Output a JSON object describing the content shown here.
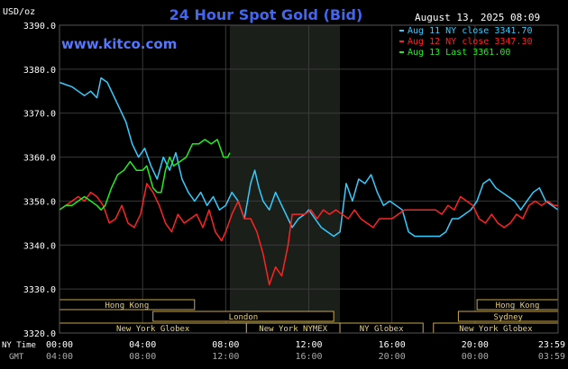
{
  "header": {
    "title": "24 Hour Spot Gold (Bid)",
    "unit": "USD/oz",
    "timestamp": "August 13, 2025 08:09",
    "site": "www.kitco.com"
  },
  "legend": [
    {
      "label": "Aug 11 NY close 3341.70",
      "color": "#33ccff"
    },
    {
      "label": "Aug 12 NY close 3347.30",
      "color": "#ff2222"
    },
    {
      "label": "Aug 13 Last 3361.00",
      "color": "#22ee22"
    }
  ],
  "sessions": [
    {
      "label": "Hong Kong",
      "row": 0,
      "start": 0,
      "end": 6.5
    },
    {
      "label": "London",
      "row": 1,
      "start": 4.5,
      "end": 13.2
    },
    {
      "label": "New York Globex",
      "row": 2,
      "start": 0,
      "end": 9
    },
    {
      "label": "New York NYMEX",
      "row": 2,
      "start": 9,
      "end": 13.5
    },
    {
      "label": "NY Globex",
      "row": 2,
      "start": 13.5,
      "end": 17.5
    },
    {
      "label": "Hong Kong",
      "row": 0,
      "start": 20.1,
      "end": 24
    },
    {
      "label": "Sydney",
      "row": 1,
      "start": 19.2,
      "end": 24
    },
    {
      "label": "New York Globex",
      "row": 2,
      "start": 18,
      "end": 24
    }
  ],
  "time_labels": {
    "ny_label": "NY Time",
    "gmt_label": "GMT",
    "ny": [
      "00:00",
      "04:00",
      "08:00",
      "12:00",
      "16:00",
      "20:00",
      "23:59"
    ],
    "gmt": [
      "04:00",
      "08:00",
      "12:00",
      "16:00",
      "20:00",
      "00:00",
      "03:59"
    ]
  },
  "chart_data": {
    "type": "line",
    "title": "24 Hour Spot Gold (Bid)",
    "ylabel": "USD/oz",
    "ylim": [
      3320,
      3390
    ],
    "yticks": [
      3320,
      3330,
      3340,
      3350,
      3360,
      3370,
      3380,
      3390
    ],
    "ytick_labels": [
      "3320.0",
      "3330.0",
      "3340.0",
      "3350.0",
      "3360.0",
      "3370.0",
      "3380.0",
      "3390.0"
    ],
    "xlim": [
      0,
      24
    ],
    "x_unit": "NY time (hours)",
    "highlight_range": [
      8.2,
      13.5
    ],
    "grid": true,
    "series": [
      {
        "name": "Aug 11 NY close 3341.70",
        "color": "#33ccff",
        "points": [
          [
            0,
            3377
          ],
          [
            0.3,
            3376.5
          ],
          [
            0.6,
            3376
          ],
          [
            0.9,
            3375
          ],
          [
            1.2,
            3374
          ],
          [
            1.5,
            3375
          ],
          [
            1.8,
            3373.5
          ],
          [
            2,
            3378
          ],
          [
            2.3,
            3377
          ],
          [
            2.6,
            3374
          ],
          [
            2.9,
            3371
          ],
          [
            3.2,
            3368
          ],
          [
            3.5,
            3363
          ],
          [
            3.8,
            3360
          ],
          [
            4.1,
            3362
          ],
          [
            4.4,
            3358
          ],
          [
            4.7,
            3355
          ],
          [
            5,
            3360
          ],
          [
            5.3,
            3357
          ],
          [
            5.6,
            3361
          ],
          [
            5.9,
            3355
          ],
          [
            6.2,
            3352
          ],
          [
            6.5,
            3350
          ],
          [
            6.8,
            3352
          ],
          [
            7.1,
            3349
          ],
          [
            7.4,
            3351
          ],
          [
            7.7,
            3348
          ],
          [
            8,
            3349
          ],
          [
            8.3,
            3352
          ],
          [
            8.6,
            3350
          ],
          [
            8.9,
            3346
          ],
          [
            9.2,
            3354
          ],
          [
            9.4,
            3357
          ],
          [
            9.6,
            3353
          ],
          [
            9.8,
            3350
          ],
          [
            10.1,
            3348
          ],
          [
            10.4,
            3352
          ],
          [
            10.7,
            3349
          ],
          [
            11,
            3346
          ],
          [
            11.2,
            3344
          ],
          [
            11.5,
            3346
          ],
          [
            11.8,
            3347
          ],
          [
            12,
            3348
          ],
          [
            12.3,
            3346
          ],
          [
            12.6,
            3344
          ],
          [
            12.9,
            3343
          ],
          [
            13.2,
            3342
          ],
          [
            13.5,
            3343
          ],
          [
            13.8,
            3354
          ],
          [
            14.1,
            3350
          ],
          [
            14.4,
            3355
          ],
          [
            14.7,
            3354
          ],
          [
            15,
            3356
          ],
          [
            15.3,
            3352
          ],
          [
            15.6,
            3349
          ],
          [
            15.9,
            3350
          ],
          [
            16.2,
            3349
          ],
          [
            16.5,
            3348
          ],
          [
            16.8,
            3343
          ],
          [
            17.1,
            3342
          ],
          [
            17.4,
            3342
          ],
          [
            17.7,
            3342
          ],
          [
            18,
            3342
          ],
          [
            18.3,
            3342
          ],
          [
            18.6,
            3343
          ],
          [
            18.9,
            3346
          ],
          [
            19.2,
            3346
          ],
          [
            19.5,
            3347
          ],
          [
            19.8,
            3348
          ],
          [
            20.1,
            3350
          ],
          [
            20.4,
            3354
          ],
          [
            20.7,
            3355
          ],
          [
            21,
            3353
          ],
          [
            21.3,
            3352
          ],
          [
            21.6,
            3351
          ],
          [
            21.9,
            3350
          ],
          [
            22.2,
            3348
          ],
          [
            22.5,
            3350
          ],
          [
            22.8,
            3352
          ],
          [
            23.1,
            3353
          ],
          [
            23.4,
            3350
          ],
          [
            23.7,
            3349
          ],
          [
            24,
            3348
          ]
        ]
      },
      {
        "name": "Aug 12 NY close 3347.30",
        "color": "#ff2222",
        "points": [
          [
            0,
            3348
          ],
          [
            0.3,
            3349
          ],
          [
            0.6,
            3350
          ],
          [
            0.9,
            3351
          ],
          [
            1.2,
            3350
          ],
          [
            1.5,
            3352
          ],
          [
            1.8,
            3351
          ],
          [
            2.1,
            3349
          ],
          [
            2.4,
            3345
          ],
          [
            2.7,
            3346
          ],
          [
            3,
            3349
          ],
          [
            3.3,
            3345
          ],
          [
            3.6,
            3344
          ],
          [
            3.9,
            3347
          ],
          [
            4.2,
            3354
          ],
          [
            4.5,
            3352
          ],
          [
            4.8,
            3349
          ],
          [
            5.1,
            3345
          ],
          [
            5.4,
            3343
          ],
          [
            5.7,
            3347
          ],
          [
            6,
            3345
          ],
          [
            6.3,
            3346
          ],
          [
            6.6,
            3347
          ],
          [
            6.9,
            3344
          ],
          [
            7.2,
            3348
          ],
          [
            7.5,
            3343
          ],
          [
            7.8,
            3341
          ],
          [
            8,
            3343
          ],
          [
            8.3,
            3347
          ],
          [
            8.6,
            3350
          ],
          [
            8.9,
            3346
          ],
          [
            9.2,
            3346
          ],
          [
            9.5,
            3343
          ],
          [
            9.8,
            3338
          ],
          [
            10.1,
            3331
          ],
          [
            10.4,
            3335
          ],
          [
            10.7,
            3333
          ],
          [
            11,
            3340
          ],
          [
            11.2,
            3347
          ],
          [
            11.5,
            3347
          ],
          [
            11.8,
            3347
          ],
          [
            12.1,
            3348
          ],
          [
            12.4,
            3346
          ],
          [
            12.7,
            3348
          ],
          [
            13,
            3347
          ],
          [
            13.3,
            3348
          ],
          [
            13.6,
            3347
          ],
          [
            13.9,
            3346
          ],
          [
            14.2,
            3348
          ],
          [
            14.5,
            3346
          ],
          [
            14.8,
            3345
          ],
          [
            15.1,
            3344
          ],
          [
            15.4,
            3346
          ],
          [
            15.7,
            3346
          ],
          [
            16,
            3346
          ],
          [
            16.3,
            3347
          ],
          [
            16.6,
            3348
          ],
          [
            16.9,
            3348
          ],
          [
            17.2,
            3348
          ],
          [
            17.5,
            3348
          ],
          [
            17.8,
            3348
          ],
          [
            18.1,
            3348
          ],
          [
            18.4,
            3347
          ],
          [
            18.7,
            3349
          ],
          [
            19,
            3348
          ],
          [
            19.3,
            3351
          ],
          [
            19.6,
            3350
          ],
          [
            19.9,
            3349
          ],
          [
            20.2,
            3346
          ],
          [
            20.5,
            3345
          ],
          [
            20.8,
            3347
          ],
          [
            21.1,
            3345
          ],
          [
            21.4,
            3344
          ],
          [
            21.7,
            3345
          ],
          [
            22,
            3347
          ],
          [
            22.3,
            3346
          ],
          [
            22.6,
            3349
          ],
          [
            22.9,
            3350
          ],
          [
            23.2,
            3349
          ],
          [
            23.5,
            3350
          ],
          [
            23.8,
            3349
          ],
          [
            24,
            3349
          ]
        ]
      },
      {
        "name": "Aug 13 Last 3361.00",
        "color": "#22ee22",
        "points": [
          [
            0,
            3348
          ],
          [
            0.3,
            3349
          ],
          [
            0.6,
            3349
          ],
          [
            0.9,
            3350
          ],
          [
            1.2,
            3351
          ],
          [
            1.5,
            3350
          ],
          [
            1.8,
            3349
          ],
          [
            2,
            3348
          ],
          [
            2.2,
            3349
          ],
          [
            2.5,
            3353
          ],
          [
            2.8,
            3356
          ],
          [
            3.1,
            3357
          ],
          [
            3.4,
            3359
          ],
          [
            3.7,
            3357
          ],
          [
            4,
            3357
          ],
          [
            4.2,
            3358
          ],
          [
            4.5,
            3353
          ],
          [
            4.7,
            3352
          ],
          [
            4.9,
            3352
          ],
          [
            5.1,
            3357
          ],
          [
            5.3,
            3360
          ],
          [
            5.5,
            3358
          ],
          [
            5.8,
            3359
          ],
          [
            6.1,
            3360
          ],
          [
            6.4,
            3363
          ],
          [
            6.7,
            3363
          ],
          [
            7,
            3364
          ],
          [
            7.3,
            3363
          ],
          [
            7.6,
            3364
          ],
          [
            7.9,
            3360
          ],
          [
            8.1,
            3360
          ],
          [
            8.2,
            3361
          ]
        ]
      }
    ]
  }
}
